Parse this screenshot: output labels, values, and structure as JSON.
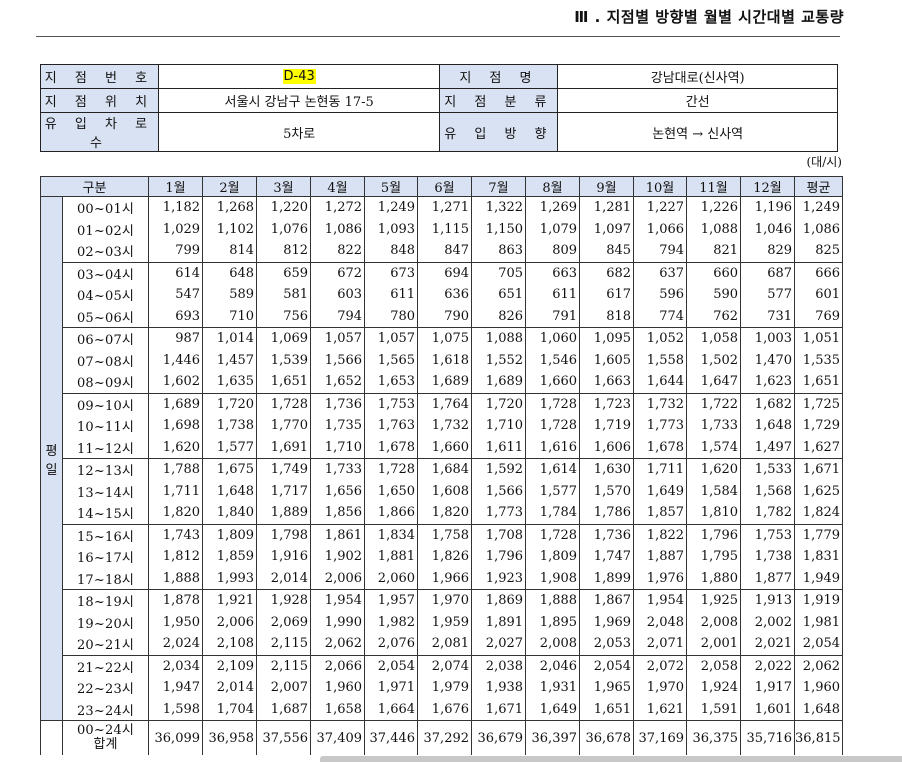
{
  "header": {
    "title": "Ⅲ . 지점별 방향별 월별 시간대별 교통량"
  },
  "info": {
    "station_no_label": "지 점 번 호",
    "station_no": "D-43",
    "station_name_label": "지 점 명",
    "station_name": "강남대로(신사역)",
    "location_label": "지 점 위 치",
    "location": "서울시 강남구 논현동 17-5",
    "category_label": "지 점 분 류",
    "category": "간선",
    "lanes_label": "유 입 차 로 수",
    "lanes": "5차로",
    "direction_label": "유 입 방 향",
    "direction": "논현역 → 신사역"
  },
  "unit": "(대/시)",
  "table": {
    "headers": [
      "구분",
      "1월",
      "2월",
      "3월",
      "4월",
      "5월",
      "6월",
      "7월",
      "8월",
      "9월",
      "10월",
      "11월",
      "12월",
      "평균"
    ],
    "group_label": "평\n일",
    "rows": [
      [
        "00~01시",
        "1,182",
        "1,268",
        "1,220",
        "1,272",
        "1,249",
        "1,271",
        "1,322",
        "1,269",
        "1,281",
        "1,227",
        "1,226",
        "1,196",
        "1,249"
      ],
      [
        "01~02시",
        "1,029",
        "1,102",
        "1,076",
        "1,086",
        "1,093",
        "1,115",
        "1,150",
        "1,079",
        "1,097",
        "1,066",
        "1,088",
        "1,046",
        "1,086"
      ],
      [
        "02~03시",
        "799",
        "814",
        "812",
        "822",
        "848",
        "847",
        "863",
        "809",
        "845",
        "794",
        "821",
        "829",
        "825"
      ],
      [
        "03~04시",
        "614",
        "648",
        "659",
        "672",
        "673",
        "694",
        "705",
        "663",
        "682",
        "637",
        "660",
        "687",
        "666"
      ],
      [
        "04~05시",
        "547",
        "589",
        "581",
        "603",
        "611",
        "636",
        "651",
        "611",
        "617",
        "596",
        "590",
        "577",
        "601"
      ],
      [
        "05~06시",
        "693",
        "710",
        "756",
        "794",
        "780",
        "790",
        "826",
        "791",
        "818",
        "774",
        "762",
        "731",
        "769"
      ],
      [
        "06~07시",
        "987",
        "1,014",
        "1,069",
        "1,057",
        "1,057",
        "1,075",
        "1,088",
        "1,060",
        "1,095",
        "1,052",
        "1,058",
        "1,003",
        "1,051"
      ],
      [
        "07~08시",
        "1,446",
        "1,457",
        "1,539",
        "1,566",
        "1,565",
        "1,618",
        "1,552",
        "1,546",
        "1,605",
        "1,558",
        "1,502",
        "1,470",
        "1,535"
      ],
      [
        "08~09시",
        "1,602",
        "1,635",
        "1,651",
        "1,652",
        "1,653",
        "1,689",
        "1,689",
        "1,660",
        "1,663",
        "1,644",
        "1,647",
        "1,623",
        "1,651"
      ],
      [
        "09~10시",
        "1,689",
        "1,720",
        "1,728",
        "1,736",
        "1,753",
        "1,764",
        "1,720",
        "1,728",
        "1,723",
        "1,732",
        "1,722",
        "1,682",
        "1,725"
      ],
      [
        "10~11시",
        "1,698",
        "1,738",
        "1,770",
        "1,735",
        "1,763",
        "1,732",
        "1,710",
        "1,728",
        "1,719",
        "1,773",
        "1,733",
        "1,648",
        "1,729"
      ],
      [
        "11~12시",
        "1,620",
        "1,577",
        "1,691",
        "1,710",
        "1,678",
        "1,660",
        "1,611",
        "1,616",
        "1,606",
        "1,678",
        "1,574",
        "1,497",
        "1,627"
      ],
      [
        "12~13시",
        "1,788",
        "1,675",
        "1,749",
        "1,733",
        "1,728",
        "1,684",
        "1,592",
        "1,614",
        "1,630",
        "1,711",
        "1,620",
        "1,533",
        "1,671"
      ],
      [
        "13~14시",
        "1,711",
        "1,648",
        "1,717",
        "1,656",
        "1,650",
        "1,608",
        "1,566",
        "1,577",
        "1,570",
        "1,649",
        "1,584",
        "1,568",
        "1,625"
      ],
      [
        "14~15시",
        "1,820",
        "1,840",
        "1,889",
        "1,856",
        "1,866",
        "1,820",
        "1,773",
        "1,784",
        "1,786",
        "1,857",
        "1,810",
        "1,782",
        "1,824"
      ],
      [
        "15~16시",
        "1,743",
        "1,809",
        "1,798",
        "1,861",
        "1,834",
        "1,758",
        "1,708",
        "1,728",
        "1,736",
        "1,822",
        "1,796",
        "1,753",
        "1,779"
      ],
      [
        "16~17시",
        "1,812",
        "1,859",
        "1,916",
        "1,902",
        "1,881",
        "1,826",
        "1,796",
        "1,809",
        "1,747",
        "1,887",
        "1,795",
        "1,738",
        "1,831"
      ],
      [
        "17~18시",
        "1,888",
        "1,993",
        "2,014",
        "2,006",
        "2,060",
        "1,966",
        "1,923",
        "1,908",
        "1,899",
        "1,976",
        "1,880",
        "1,877",
        "1,949"
      ],
      [
        "18~19시",
        "1,878",
        "1,921",
        "1,928",
        "1,954",
        "1,957",
        "1,970",
        "1,869",
        "1,888",
        "1,867",
        "1,954",
        "1,925",
        "1,913",
        "1,919"
      ],
      [
        "19~20시",
        "1,950",
        "2,006",
        "2,069",
        "1,990",
        "1,982",
        "1,959",
        "1,891",
        "1,895",
        "1,969",
        "2,048",
        "2,008",
        "2,002",
        "1,981"
      ],
      [
        "20~21시",
        "2,024",
        "2,108",
        "2,115",
        "2,062",
        "2,076",
        "2,081",
        "2,027",
        "2,008",
        "2,053",
        "2,071",
        "2,001",
        "2,021",
        "2,054"
      ],
      [
        "21~22시",
        "2,034",
        "2,109",
        "2,115",
        "2,066",
        "2,054",
        "2,074",
        "2,038",
        "2,046",
        "2,054",
        "2,072",
        "2,058",
        "2,022",
        "2,062"
      ],
      [
        "22~23시",
        "1,947",
        "2,014",
        "2,007",
        "1,960",
        "1,971",
        "1,979",
        "1,938",
        "1,931",
        "1,965",
        "1,970",
        "1,924",
        "1,917",
        "1,960"
      ],
      [
        "23~24시",
        "1,598",
        "1,704",
        "1,687",
        "1,658",
        "1,664",
        "1,676",
        "1,671",
        "1,649",
        "1,651",
        "1,621",
        "1,591",
        "1,601",
        "1,648"
      ]
    ],
    "total_label_1": "00~24시",
    "total_label_2": "합계",
    "total": [
      "36,099",
      "36,958",
      "37,556",
      "37,409",
      "37,446",
      "37,292",
      "36,679",
      "36,397",
      "36,678",
      "37,169",
      "36,375",
      "35,716",
      "36,815"
    ]
  },
  "colors": {
    "header_bg": "#d9e2f2",
    "highlight": "#ffff00"
  }
}
